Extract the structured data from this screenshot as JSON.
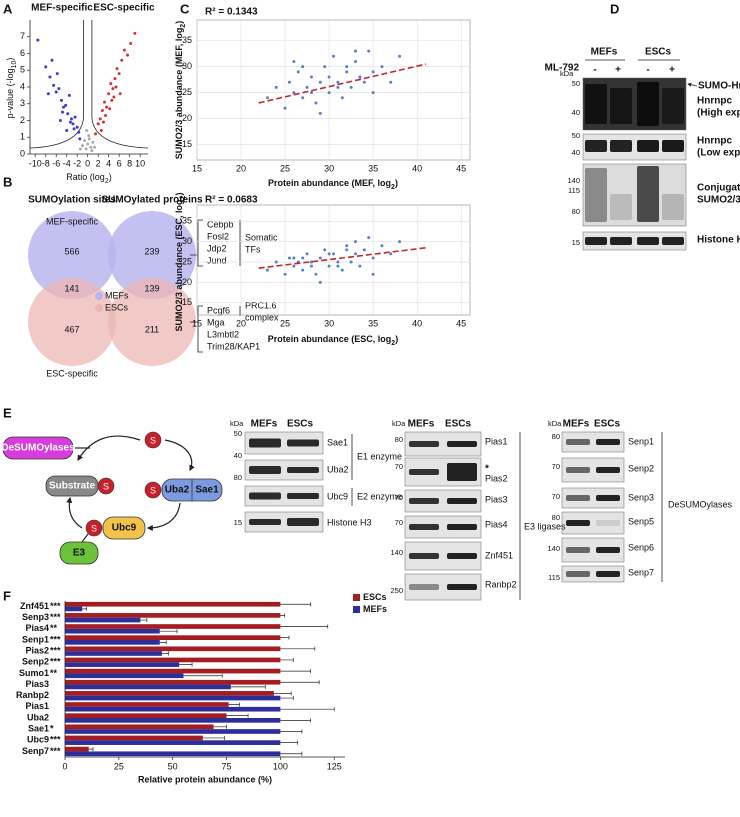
{
  "panel_labels": [
    "A",
    "B",
    "C",
    "D",
    "E",
    "F"
  ],
  "chart_data": [
    {
      "type": "scatter",
      "title": [
        "MEF-specific",
        "ESC-specific"
      ],
      "xlabel": [
        "Ratio (log",
        "2",
        ")"
      ],
      "ylabel": [
        "p-value (-log",
        "10",
        ")"
      ],
      "xlim": [
        -11,
        11.5
      ],
      "ylim": [
        0,
        8
      ],
      "xticks": [
        -10,
        -8,
        -6,
        -4,
        -2,
        0,
        2,
        4,
        6,
        8,
        10
      ],
      "yticks": [
        0,
        1,
        2,
        3,
        4,
        5,
        6,
        7
      ],
      "grid": false,
      "series": [
        {
          "color": "#3a3ad8",
          "x": [
            -9.5,
            -8,
            -7.2,
            -6.5,
            -6,
            -5.5,
            -5,
            -4.6,
            -4.2,
            -3.8,
            -3.5,
            -3.1,
            -2.8,
            -2.4,
            -2,
            -1.7,
            -6.8,
            -5.8,
            -4.8,
            -3.3,
            -2.6,
            -7.5,
            -5.2,
            -4,
            -1.5
          ],
          "values": [
            6.8,
            5.2,
            4.6,
            4.1,
            3.7,
            3.9,
            3.2,
            2.8,
            2.9,
            2.4,
            3.5,
            2.1,
            1.8,
            2.2,
            1.6,
            1.3,
            5.6,
            4.8,
            2.5,
            1.9,
            1.5,
            3.6,
            2.0,
            1.4,
            0.9
          ]
        },
        {
          "color": "#d83030",
          "x": [
            1.5,
            2,
            2.4,
            2.8,
            3.2,
            3.6,
            4,
            4.4,
            4.8,
            5.2,
            5.6,
            6,
            6.5,
            7,
            7.6,
            8.2,
            3.4,
            4.6,
            5.4,
            6.2,
            2.6,
            3,
            4.2,
            5,
            9
          ],
          "values": [
            1.2,
            1.8,
            2.1,
            2.6,
            3.1,
            2.8,
            3.6,
            4.2,
            3.9,
            4.5,
            5.1,
            4.8,
            5.6,
            6.2,
            5.9,
            6.6,
            2.3,
            3.2,
            4.0,
            3.6,
            1.4,
            1.9,
            2.7,
            3.4,
            7.2
          ]
        },
        {
          "color": "#aaaaaa",
          "x": [
            -1,
            -0.6,
            -0.3,
            0,
            0.3,
            0.6,
            1,
            -1.4,
            1.3,
            0.2,
            -0.2,
            0.8
          ],
          "values": [
            0.5,
            0.8,
            0.3,
            0.6,
            0.9,
            0.4,
            0.7,
            0.3,
            0.4,
            1.1,
            1.4,
            0.2
          ]
        }
      ]
    },
    {
      "type": "scatter",
      "title": "R² = 0.1343",
      "xlabel": [
        "Protein abundance (MEF, log",
        "2",
        ")"
      ],
      "ylabel": [
        "SUMO2/3 abundance (MEF, log",
        "2",
        ")"
      ],
      "xlim": [
        15,
        46
      ],
      "ylim": [
        12,
        39
      ],
      "xticks": [
        15,
        20,
        25,
        30,
        35,
        40,
        45
      ],
      "yticks": [
        15,
        20,
        25,
        30,
        35
      ],
      "grid": true,
      "series": [
        {
          "color": "#5b7fc7",
          "x": [
            23,
            24,
            25,
            25.5,
            26,
            26.5,
            27,
            27.5,
            28,
            28.5,
            29,
            29.5,
            30,
            30.5,
            31,
            31.5,
            32,
            32.5,
            33,
            33.5,
            34,
            34.5,
            35,
            36,
            37,
            38,
            27,
            29,
            31,
            33,
            35,
            30,
            28,
            32,
            26
          ],
          "values": [
            24,
            26,
            22,
            27,
            25,
            29,
            24,
            26,
            28,
            23,
            27,
            30,
            25,
            32,
            27,
            24,
            29,
            26,
            31,
            28,
            27,
            33,
            29,
            30,
            27,
            32,
            30,
            21,
            26,
            33,
            25,
            28,
            25,
            30,
            31
          ]
        }
      ],
      "trend": {
        "color": "#c0282d",
        "x": [
          22,
          41
        ],
        "values": [
          23,
          30.5
        ]
      }
    },
    {
      "type": "scatter",
      "title": "R² = 0.0683",
      "xlabel": [
        "Protein abundance (ESC, log",
        "2",
        ")"
      ],
      "ylabel": [
        "SUMO2/3 abundance (ESC, log",
        "2",
        ")"
      ],
      "xlim": [
        15,
        46
      ],
      "ylim": [
        12,
        39
      ],
      "xticks": [
        15,
        20,
        25,
        30,
        35,
        40,
        45
      ],
      "yticks": [
        15,
        20,
        25,
        30,
        35
      ],
      "grid": true,
      "series": [
        {
          "color": "#5b7fc7",
          "x": [
            23,
            24,
            25,
            25.5,
            26,
            26.5,
            27,
            27.5,
            28,
            28.5,
            29,
            29.5,
            30,
            30.5,
            31,
            31.5,
            32,
            32.5,
            33,
            33.5,
            34,
            34.5,
            35,
            36,
            37,
            38,
            27,
            29,
            31,
            33,
            35,
            30,
            28,
            32,
            26
          ],
          "values": [
            23,
            25,
            22,
            26,
            24,
            25,
            23,
            27,
            24,
            22,
            26,
            28,
            24,
            27,
            25,
            23,
            29,
            25,
            27,
            24,
            28,
            31,
            26,
            29,
            27,
            30,
            26,
            20,
            24,
            30,
            22,
            27,
            25,
            28,
            26
          ]
        }
      ],
      "trend": {
        "color": "#c0282d",
        "x": [
          22,
          41
        ],
        "values": [
          23.5,
          28.5
        ]
      }
    },
    {
      "type": "bar",
      "orientation": "horizontal",
      "categories": [
        "Znf451",
        "Senp3",
        "Pias4",
        "Senp1",
        "Pias2",
        "Senp2",
        "Sumo1",
        "Pias3",
        "Ranbp2",
        "Pias1",
        "Uba2",
        "Sae1",
        "Ubc9",
        "Senp7"
      ],
      "significance": [
        "***",
        "***",
        "**",
        "***",
        "***",
        "***",
        "**",
        null,
        null,
        null,
        null,
        "*",
        "***",
        "***"
      ],
      "series": [
        {
          "name": "ESCs",
          "color": "#a31e22",
          "values": [
            100,
            100,
            100,
            100,
            100,
            100,
            100,
            100,
            97,
            76,
            75,
            69,
            64,
            11
          ],
          "errors": [
            14,
            2,
            22,
            4,
            16,
            6,
            14,
            18,
            8,
            5,
            10,
            6,
            10,
            2
          ]
        },
        {
          "name": "MEFs",
          "color": "#2e2e9a",
          "values": [
            8,
            35,
            44,
            44,
            45,
            53,
            55,
            77,
            100,
            100,
            100,
            100,
            100,
            100
          ],
          "errors": [
            2,
            3,
            8,
            3,
            3,
            6,
            18,
            16,
            6,
            25,
            14,
            10,
            8,
            10
          ]
        }
      ],
      "xlim": [
        0,
        130
      ],
      "xticks": [
        0,
        25,
        50,
        75,
        100,
        125
      ],
      "xlabel": "Relative protein abundance (%)",
      "legend": "upper right"
    }
  ],
  "panel_b": {
    "headers": [
      "SUMOylation sites",
      "SUMOylated proteins"
    ],
    "mef_specific": "MEF-specific",
    "esc_specific": "ESC-specific",
    "sites": [
      566,
      141,
      467
    ],
    "proteins": [
      239,
      139,
      211
    ],
    "legend": [
      "MEFs",
      "ESCs"
    ],
    "somatic_genes": [
      "Cebpb",
      "Fosl2",
      "Jdp2",
      "Jund"
    ],
    "somatic_label": [
      "Somatic",
      "TFs"
    ],
    "prc_genes": [
      "Pcgf6",
      "Mga",
      "L3mbtl2",
      "Trim28/KAP1"
    ],
    "prc_label": [
      "PRC1.6",
      "complex"
    ]
  },
  "panel_d": {
    "lanes": [
      "MEFs",
      "ESCs"
    ],
    "treatment": "ML-792",
    "marks": [
      "-",
      "+",
      "-",
      "+"
    ],
    "kda": "kDa",
    "markers": [
      50,
      40,
      50,
      40,
      140,
      115,
      80,
      15
    ],
    "bands": [
      "SUMO-Hnrnpc",
      "Hnrnpc",
      "(High exposure)",
      "Hnrnpc",
      "(Low exposure)",
      "Conjugated",
      "SUMO2/3",
      "Histone H3"
    ]
  },
  "panel_e": {
    "diagram": {
      "desumoylases": "DeSUMOylases",
      "s": "S",
      "substrate": "Substrate",
      "uba2": "Uba2",
      "sae1": "Sae1",
      "ubc9": "Ubc9",
      "e3": "E3"
    },
    "blots": [
      {
        "kda": "kDa",
        "lanes": [
          "MEFs",
          "ESCs"
        ],
        "markers": [
          50,
          40,
          80,
          15
        ],
        "bands": [
          "Sae1",
          "Uba2",
          "Ubc9",
          "Histone H3"
        ],
        "groups": [
          "E1 enzyme",
          "E2 enzyme"
        ]
      },
      {
        "kda": "kDa",
        "lanes": [
          "MEFs",
          "ESCs"
        ],
        "markers": [
          80,
          70,
          70,
          70,
          140,
          250
        ],
        "bands": [
          "Pias1",
          "Pias2",
          "Pias3",
          "Pias4",
          "Znf451",
          "Ranbp2"
        ],
        "note": "*",
        "groups": [
          "E3 ligases"
        ]
      },
      {
        "kda": "kDa",
        "lanes": [
          "MEFs",
          "ESCs"
        ],
        "markers": [
          80,
          70,
          70,
          80,
          140,
          115
        ],
        "bands": [
          "Senp1",
          "Senp2",
          "Senp3",
          "Senp5",
          "Senp6",
          "Senp7"
        ],
        "groups": [
          "DeSUMOylases"
        ]
      }
    ]
  }
}
